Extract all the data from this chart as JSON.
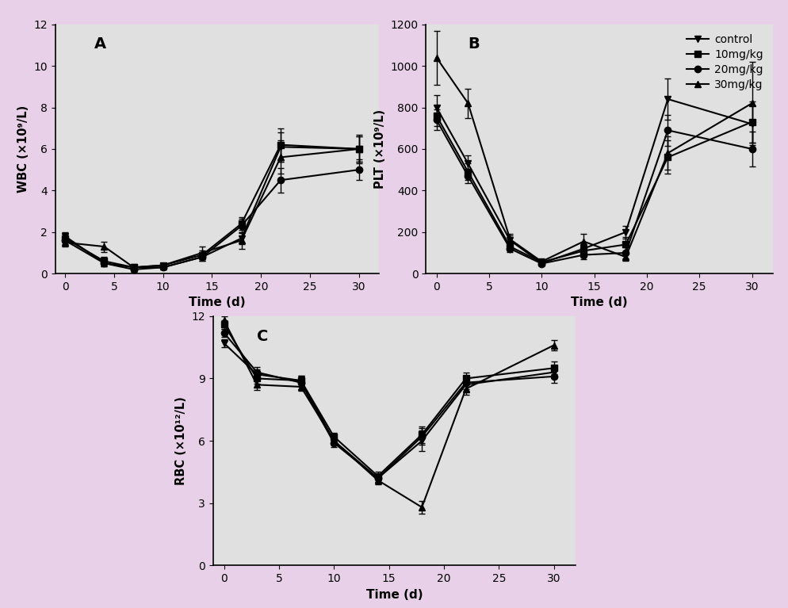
{
  "background_color": "#e8d0e8",
  "panel_bg": "#e0e0e0",
  "WBC": {
    "title": "A",
    "xlabel": "Time (d)",
    "ylabel": "WBC (×10⁹/L)",
    "xlim": [
      -1,
      32
    ],
    "ylim": [
      0,
      12
    ],
    "yticks": [
      0,
      2,
      4,
      6,
      8,
      10,
      12
    ],
    "xticks": [
      0,
      5,
      10,
      15,
      20,
      25,
      30
    ],
    "series": {
      "control": {
        "x": [
          0,
          4,
          7,
          10,
          14,
          18,
          22,
          30
        ],
        "y": [
          1.8,
          0.5,
          0.3,
          0.3,
          0.8,
          1.7,
          6.1,
          6.0
        ],
        "yerr": [
          0.2,
          0.15,
          0.1,
          0.1,
          0.2,
          0.3,
          0.7,
          0.6
        ],
        "marker": "v"
      },
      "10mg": {
        "x": [
          0,
          4,
          7,
          10,
          14,
          18,
          22,
          30
        ],
        "y": [
          1.7,
          0.6,
          0.3,
          0.4,
          0.9,
          2.4,
          6.2,
          6.0
        ],
        "yerr": [
          0.2,
          0.2,
          0.1,
          0.1,
          0.2,
          0.3,
          0.8,
          0.6
        ],
        "marker": "s"
      },
      "20mg": {
        "x": [
          0,
          4,
          7,
          10,
          14,
          18,
          22,
          30
        ],
        "y": [
          1.6,
          0.5,
          0.2,
          0.3,
          0.8,
          2.3,
          4.5,
          5.0
        ],
        "yerr": [
          0.2,
          0.15,
          0.1,
          0.1,
          0.2,
          0.35,
          0.6,
          0.5
        ],
        "marker": "o"
      },
      "30mg": {
        "x": [
          0,
          4,
          7,
          10,
          14,
          18,
          22,
          30
        ],
        "y": [
          1.5,
          1.3,
          0.3,
          0.4,
          1.0,
          1.6,
          5.6,
          6.0
        ],
        "yerr": [
          0.2,
          0.25,
          0.1,
          0.1,
          0.3,
          0.4,
          0.8,
          0.7
        ],
        "marker": "^"
      }
    }
  },
  "PLT": {
    "title": "B",
    "xlabel": "Time (d)",
    "ylabel": "PLT (×10⁹/L)",
    "xlim": [
      -1,
      32
    ],
    "ylim": [
      0,
      1200
    ],
    "yticks": [
      0,
      200,
      400,
      600,
      800,
      1000,
      1200
    ],
    "xticks": [
      0,
      5,
      10,
      15,
      20,
      25,
      30
    ],
    "series": {
      "control": {
        "x": [
          0,
          3,
          7,
          10,
          14,
          18,
          22,
          30
        ],
        "y": [
          800,
          530,
          160,
          50,
          120,
          200,
          840,
          720
        ],
        "yerr": [
          60,
          40,
          25,
          12,
          30,
          30,
          100,
          90
        ],
        "marker": "v"
      },
      "10mg": {
        "x": [
          0,
          3,
          7,
          10,
          14,
          18,
          22,
          30
        ],
        "y": [
          760,
          490,
          130,
          55,
          110,
          140,
          560,
          730
        ],
        "yerr": [
          50,
          40,
          20,
          12,
          25,
          35,
          80,
          100
        ],
        "marker": "s"
      },
      "20mg": {
        "x": [
          0,
          3,
          7,
          10,
          14,
          18,
          22,
          30
        ],
        "y": [
          740,
          470,
          120,
          48,
          90,
          100,
          690,
          600
        ],
        "yerr": [
          50,
          35,
          18,
          10,
          22,
          28,
          75,
          85
        ],
        "marker": "o"
      },
      "30mg": {
        "x": [
          0,
          3,
          7,
          10,
          14,
          18,
          22,
          30
        ],
        "y": [
          1040,
          820,
          165,
          58,
          155,
          80,
          580,
          820
        ],
        "yerr": [
          130,
          70,
          28,
          15,
          35,
          18,
          80,
          200
        ],
        "marker": "^"
      }
    }
  },
  "RBC": {
    "title": "C",
    "xlabel": "Time (d)",
    "ylabel": "RBC (×10¹²/L)",
    "xlim": [
      -1,
      32
    ],
    "ylim": [
      0,
      12
    ],
    "yticks": [
      0,
      3,
      6,
      9,
      12
    ],
    "xticks": [
      0,
      5,
      10,
      15,
      20,
      25,
      30
    ],
    "series": {
      "control": {
        "x": [
          0,
          3,
          7,
          10,
          14,
          18,
          22,
          30
        ],
        "y": [
          10.7,
          9.2,
          8.9,
          6.0,
          4.2,
          6.0,
          8.7,
          9.3
        ],
        "yerr": [
          0.2,
          0.25,
          0.25,
          0.2,
          0.2,
          0.5,
          0.3,
          0.3
        ],
        "marker": "v"
      },
      "10mg": {
        "x": [
          0,
          3,
          7,
          10,
          14,
          18,
          22,
          30
        ],
        "y": [
          11.6,
          9.0,
          8.9,
          6.2,
          4.3,
          6.3,
          9.0,
          9.5
        ],
        "yerr": [
          0.2,
          0.25,
          0.25,
          0.2,
          0.2,
          0.4,
          0.3,
          0.3
        ],
        "marker": "s"
      },
      "20mg": {
        "x": [
          0,
          3,
          7,
          10,
          14,
          18,
          22,
          30
        ],
        "y": [
          11.2,
          9.3,
          8.8,
          5.9,
          4.2,
          6.2,
          8.8,
          9.1
        ],
        "yerr": [
          0.2,
          0.25,
          0.3,
          0.2,
          0.2,
          0.4,
          0.3,
          0.3
        ],
        "marker": "o"
      },
      "30mg": {
        "x": [
          0,
          3,
          7,
          10,
          14,
          18,
          22,
          30
        ],
        "y": [
          11.8,
          8.7,
          8.6,
          6.0,
          4.1,
          2.8,
          8.5,
          10.6
        ],
        "yerr": [
          0.2,
          0.25,
          0.2,
          0.2,
          0.2,
          0.3,
          0.3,
          0.25
        ],
        "marker": "^"
      }
    }
  },
  "series_order": [
    "control",
    "10mg",
    "20mg",
    "30mg"
  ],
  "legend_labels": [
    "control",
    "10mg/kg",
    "20mg/kg",
    "30mg/kg"
  ],
  "line_color": "#000000",
  "markersize": 6,
  "linewidth": 1.5,
  "capsize": 3,
  "elinewidth": 1.0
}
